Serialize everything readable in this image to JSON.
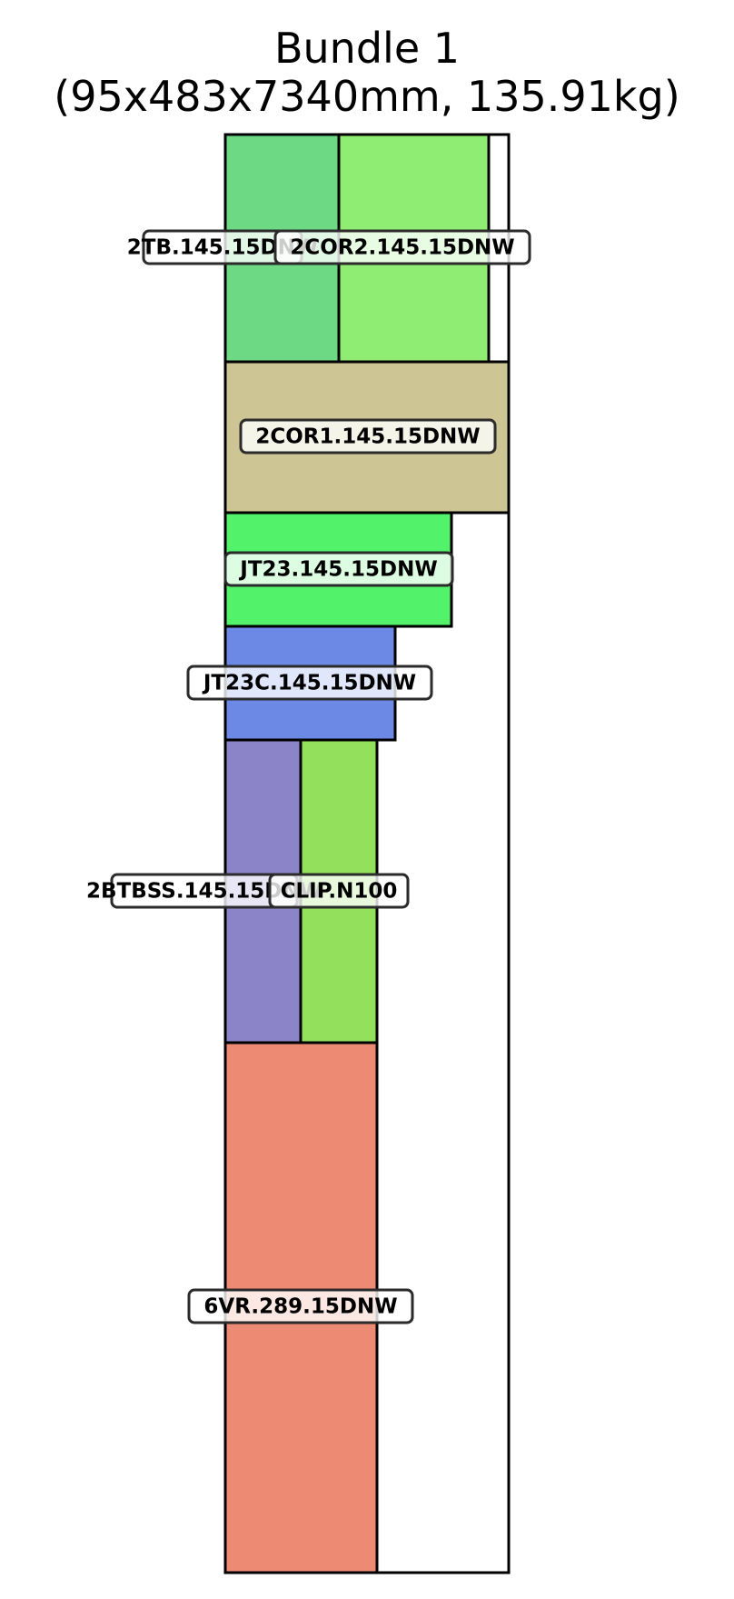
{
  "title": {
    "line1": "Bundle 1",
    "line2": "(95x483x7340mm, 135.91kg)"
  },
  "pieces": [
    {
      "id": "2TB",
      "label": "2TB.145.15DNW",
      "color": "#6dd985"
    },
    {
      "id": "2COR2",
      "label": "2COR2.145.15DNW",
      "color": "#8eed72"
    },
    {
      "id": "2COR1",
      "label": "2COR1.145.15DNW",
      "color": "#cdc593"
    },
    {
      "id": "JT23",
      "label": "JT23.145.15DNW",
      "color": "#52f26b"
    },
    {
      "id": "JT23C",
      "label": "JT23C.145.15DNW",
      "color": "#6b89e5"
    },
    {
      "id": "2BTBSS",
      "label": "2BTBSS.145.15DNW",
      "color": "#8c84c8"
    },
    {
      "id": "CLIP",
      "label": "CLIP.N100",
      "color": "#93e05c"
    },
    {
      "id": "6VR",
      "label": "6VR.289.15DNW",
      "color": "#ec8a73"
    }
  ]
}
